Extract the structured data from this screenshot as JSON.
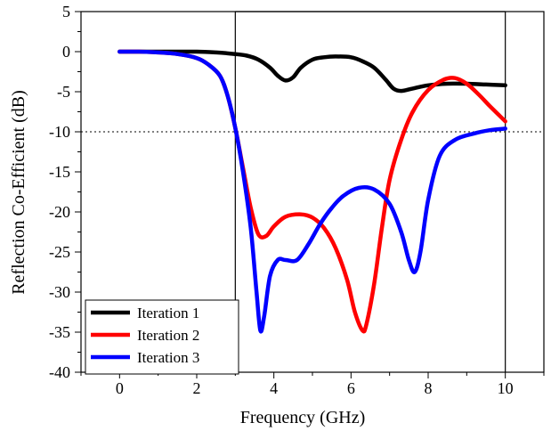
{
  "chart_data": {
    "type": "line",
    "title": "",
    "xlabel": "Frequency (GHz)",
    "ylabel": "Reflection Co-Efficient (dB)",
    "xlim": [
      -1,
      11
    ],
    "ylim": [
      -40,
      5
    ],
    "xticks": [
      0,
      2,
      4,
      6,
      8,
      10
    ],
    "yticks": [
      5,
      0,
      -5,
      -10,
      -15,
      -20,
      -25,
      -30,
      -35,
      -40
    ],
    "grid": false,
    "legend": "bottom-left",
    "reference_line": {
      "y": -10,
      "style": "dotted"
    },
    "highlight_band": {
      "x": [
        3,
        10
      ]
    },
    "series": [
      {
        "name": "Iteration 1",
        "color": "#000000",
        "x": [
          0,
          0.5,
          1,
          1.5,
          2,
          2.5,
          3,
          3.3,
          3.6,
          3.9,
          4.1,
          4.3,
          4.5,
          4.7,
          5.0,
          5.3,
          5.6,
          6.0,
          6.3,
          6.6,
          6.9,
          7.1,
          7.3,
          7.6,
          8.0,
          8.5,
          9.0,
          9.5,
          10
        ],
        "values": [
          0,
          0,
          0,
          0,
          0,
          -0.1,
          -0.3,
          -0.5,
          -1.0,
          -2.0,
          -3.0,
          -3.6,
          -3.2,
          -2.0,
          -1.0,
          -0.7,
          -0.6,
          -0.7,
          -1.2,
          -2.0,
          -3.5,
          -4.6,
          -4.9,
          -4.6,
          -4.2,
          -4.0,
          -4.0,
          -4.1,
          -4.2
        ]
      },
      {
        "name": "Iteration 2",
        "color": "#ff0000",
        "x": [
          0,
          0.5,
          1,
          1.5,
          2,
          2.3,
          2.6,
          2.8,
          3.0,
          3.2,
          3.4,
          3.6,
          3.8,
          4.0,
          4.3,
          4.7,
          5.0,
          5.3,
          5.6,
          5.9,
          6.1,
          6.3,
          6.4,
          6.6,
          6.8,
          7.0,
          7.3,
          7.6,
          8.0,
          8.4,
          8.7,
          9.0,
          9.3,
          9.6,
          10
        ],
        "values": [
          0,
          0,
          -0.1,
          -0.3,
          -0.8,
          -1.6,
          -3.0,
          -5.5,
          -9.5,
          -14.5,
          -19.5,
          -22.8,
          -23.0,
          -21.8,
          -20.6,
          -20.3,
          -20.7,
          -22.0,
          -24.5,
          -28.5,
          -32.5,
          -34.8,
          -34.0,
          -29.0,
          -22.0,
          -16.0,
          -11.0,
          -7.5,
          -4.8,
          -3.5,
          -3.3,
          -4.0,
          -5.3,
          -6.8,
          -8.7
        ]
      },
      {
        "name": "Iteration 3",
        "color": "#0000ff",
        "x": [
          0,
          0.5,
          1,
          1.5,
          2,
          2.3,
          2.6,
          2.8,
          3.0,
          3.2,
          3.4,
          3.55,
          3.65,
          3.75,
          3.9,
          4.1,
          4.3,
          4.6,
          4.9,
          5.2,
          5.5,
          5.8,
          6.2,
          6.6,
          7.0,
          7.3,
          7.5,
          7.65,
          7.8,
          8.0,
          8.3,
          8.7,
          9.2,
          9.6,
          10
        ],
        "values": [
          0,
          0,
          -0.1,
          -0.3,
          -0.8,
          -1.6,
          -3.0,
          -5.5,
          -9.5,
          -15.0,
          -22.0,
          -30.0,
          -34.8,
          -33.0,
          -28.0,
          -26.0,
          -26.0,
          -26.0,
          -24.0,
          -21.5,
          -19.5,
          -18.0,
          -17.0,
          -17.2,
          -19.0,
          -22.5,
          -26.0,
          -27.5,
          -25.0,
          -18.5,
          -13.0,
          -11.0,
          -10.2,
          -9.8,
          -9.6
        ]
      }
    ]
  }
}
